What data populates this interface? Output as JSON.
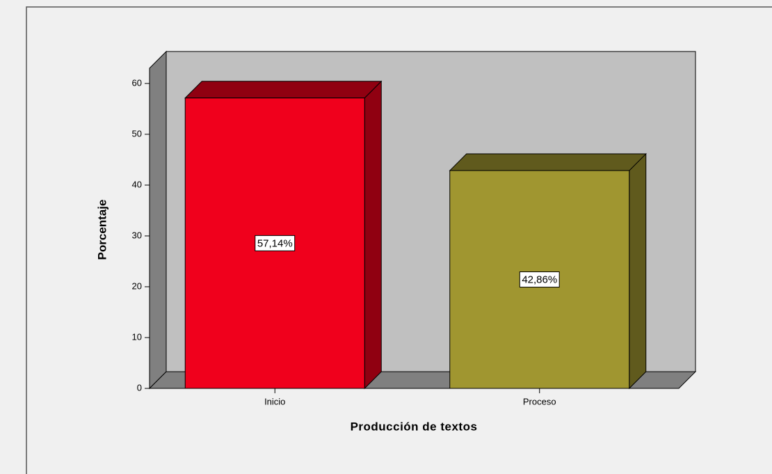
{
  "chart_data": {
    "type": "bar3d",
    "x_label": "Producción de textos",
    "y_label": "Porcentaje",
    "categories": [
      "Inicio",
      "Proceso"
    ],
    "values": [
      57.14,
      42.86
    ],
    "value_labels": [
      "57,14%",
      "42,86%"
    ],
    "colors": [
      "#f0001c",
      "#a09630"
    ],
    "ylim": [
      0,
      63
    ],
    "yticks": [
      0,
      10,
      20,
      30,
      40,
      50,
      60
    ]
  }
}
